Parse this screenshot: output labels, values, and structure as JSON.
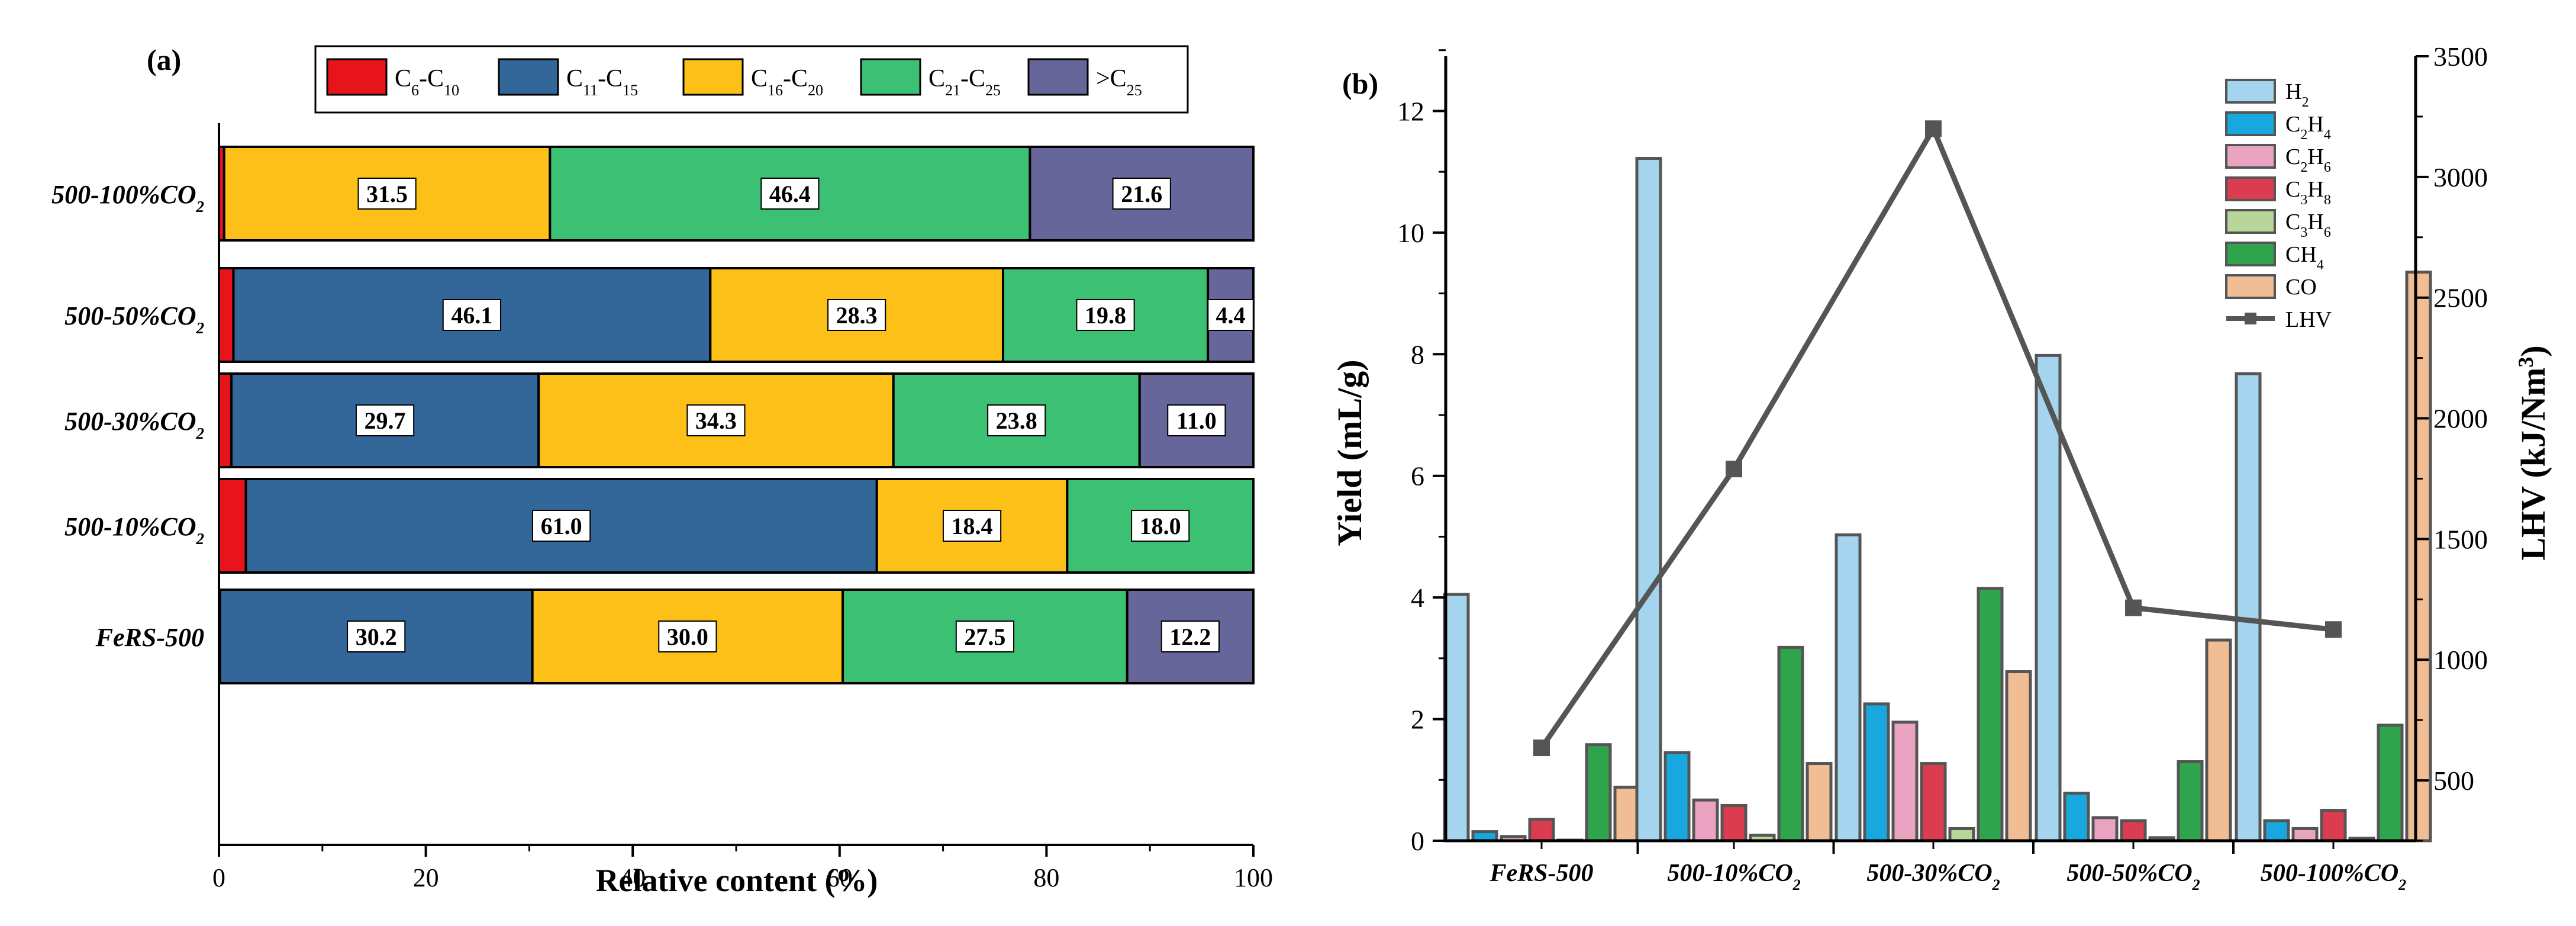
{
  "chart_data": [
    {
      "panel_label": "(a)",
      "type": "bar",
      "orientation": "horizontal",
      "stacked": true,
      "categories": [
        {
          "parts": [
            {
              "t": "500-100%CO"
            },
            {
              "t": "2",
              "sub": true
            }
          ]
        },
        {
          "parts": [
            {
              "t": "500-50%CO"
            },
            {
              "t": "2",
              "sub": true
            }
          ]
        },
        {
          "parts": [
            {
              "t": "500-30%CO"
            },
            {
              "t": "2",
              "sub": true
            }
          ]
        },
        {
          "parts": [
            {
              "t": "500-10%CO"
            },
            {
              "t": "2",
              "sub": true
            }
          ]
        },
        {
          "parts": [
            {
              "t": "FeRS-500"
            }
          ]
        }
      ],
      "series": [
        {
          "name": "C6-C10",
          "color": "#e8141b",
          "legend": [
            {
              "t": "C"
            },
            {
              "t": "6",
              "sub": true
            },
            {
              "t": "-C"
            },
            {
              "t": "10",
              "sub": true
            }
          ],
          "values": [
            0.5,
            1.4,
            1.2,
            2.6,
            0.1
          ],
          "labels": [
            "",
            "",
            "",
            "",
            ""
          ]
        },
        {
          "name": "C11-C15",
          "color": "#336699",
          "legend": [
            {
              "t": "C"
            },
            {
              "t": "11",
              "sub": true
            },
            {
              "t": "-C"
            },
            {
              "t": "15",
              "sub": true
            }
          ],
          "values": [
            0.0,
            46.1,
            29.7,
            61.0,
            30.2
          ],
          "labels": [
            "",
            "46.1",
            "29.7",
            "61.0",
            "30.2"
          ]
        },
        {
          "name": "C16-C20",
          "color": "#fdc018",
          "legend": [
            {
              "t": "C"
            },
            {
              "t": "16",
              "sub": true
            },
            {
              "t": "-C"
            },
            {
              "t": "20",
              "sub": true
            }
          ],
          "values": [
            31.5,
            28.3,
            34.3,
            18.4,
            30.0
          ],
          "labels": [
            "31.5",
            "28.3",
            "34.3",
            "18.4",
            "30.0"
          ]
        },
        {
          "name": "C21-C25",
          "color": "#3cc073",
          "legend": [
            {
              "t": "C"
            },
            {
              "t": "21",
              "sub": true
            },
            {
              "t": "-C"
            },
            {
              "t": "25",
              "sub": true
            }
          ],
          "values": [
            46.4,
            19.8,
            23.8,
            18.0,
            27.5
          ],
          "labels": [
            "46.4",
            "19.8",
            "23.8",
            "18.0",
            "27.5"
          ]
        },
        {
          "name": ">C25",
          "color": "#66669a",
          "legend": [
            {
              "t": ">C"
            },
            {
              "t": "25",
              "sub": true
            }
          ],
          "values": [
            21.6,
            4.4,
            11.0,
            0.0,
            12.2
          ],
          "labels": [
            "21.6",
            "4.4",
            "11.0",
            "",
            "12.2"
          ]
        }
      ],
      "xlabel": "Relative content (%)",
      "xlim": [
        0,
        100
      ],
      "xticks": [
        0,
        20,
        40,
        60,
        80,
        100
      ],
      "legend_position": "top"
    },
    {
      "panel_label": "(b)",
      "type": "bar",
      "categories": [
        {
          "parts": [
            {
              "t": "FeRS-500"
            }
          ]
        },
        {
          "parts": [
            {
              "t": "500-10%CO"
            },
            {
              "t": "2",
              "sub": true
            }
          ]
        },
        {
          "parts": [
            {
              "t": "500-30%CO"
            },
            {
              "t": "2",
              "sub": true
            }
          ]
        },
        {
          "parts": [
            {
              "t": "500-50%CO"
            },
            {
              "t": "2",
              "sub": true
            }
          ]
        },
        {
          "parts": [
            {
              "t": "500-100%CO"
            },
            {
              "t": "2",
              "sub": true
            }
          ]
        }
      ],
      "series": [
        {
          "name": "H2",
          "color": "#a5d5ee",
          "legend": [
            {
              "t": "H"
            },
            {
              "t": "2",
              "sub": true
            }
          ],
          "values": [
            4.05,
            11.22,
            5.03,
            7.98,
            7.68
          ]
        },
        {
          "name": "C2H4",
          "color": "#18a7df",
          "legend": [
            {
              "t": "C"
            },
            {
              "t": "2",
              "sub": true
            },
            {
              "t": "H"
            },
            {
              "t": "4",
              "sub": true
            }
          ],
          "values": [
            0.15,
            1.45,
            2.25,
            0.78,
            0.33
          ]
        },
        {
          "name": "C2H6",
          "color": "#eaa3c1",
          "legend": [
            {
              "t": "C"
            },
            {
              "t": "2",
              "sub": true
            },
            {
              "t": "H"
            },
            {
              "t": "6",
              "sub": true
            }
          ],
          "values": [
            0.07,
            0.67,
            1.95,
            0.38,
            0.2
          ]
        },
        {
          "name": "C3H8",
          "color": "#db3c50",
          "legend": [
            {
              "t": "C"
            },
            {
              "t": "3",
              "sub": true
            },
            {
              "t": "H"
            },
            {
              "t": "8",
              "sub": true
            }
          ],
          "values": [
            0.35,
            0.58,
            1.27,
            0.33,
            0.5
          ]
        },
        {
          "name": "C3H6",
          "color": "#b6d69a",
          "legend": [
            {
              "t": "C"
            },
            {
              "t": "3",
              "sub": true
            },
            {
              "t": "H"
            },
            {
              "t": "6",
              "sub": true
            }
          ],
          "values": [
            0.0,
            0.09,
            0.2,
            0.05,
            0.04
          ]
        },
        {
          "name": "CH4",
          "color": "#2fa44d",
          "legend": [
            {
              "t": "CH"
            },
            {
              "t": "4",
              "sub": true
            }
          ],
          "values": [
            1.58,
            3.18,
            4.15,
            1.3,
            1.9
          ]
        },
        {
          "name": "CO",
          "color": "#f0bd94",
          "legend": [
            {
              "t": "CO"
            }
          ],
          "values": [
            0.88,
            1.27,
            2.78,
            3.3,
            9.35
          ]
        }
      ],
      "line_series": {
        "name": "LHV",
        "color": "#555555",
        "legend": [
          {
            "t": "LHV"
          }
        ],
        "axis": "right",
        "values": [
          635,
          1790,
          3200,
          1215,
          1125
        ]
      },
      "ylabel": "Yield (mL/g)",
      "ylim": [
        0,
        12.9
      ],
      "yticks": [
        0,
        2,
        4,
        6,
        8,
        10,
        12
      ],
      "y2label": [
        {
          "t": "LHV (kJ/Nm"
        },
        {
          "t": "3",
          "sup": true
        },
        {
          "t": ")"
        }
      ],
      "y2lim": [
        250,
        3500
      ],
      "y2ticks": [
        500,
        1000,
        1500,
        2000,
        2500,
        3000,
        3500
      ],
      "legend_position": "top-right"
    }
  ]
}
